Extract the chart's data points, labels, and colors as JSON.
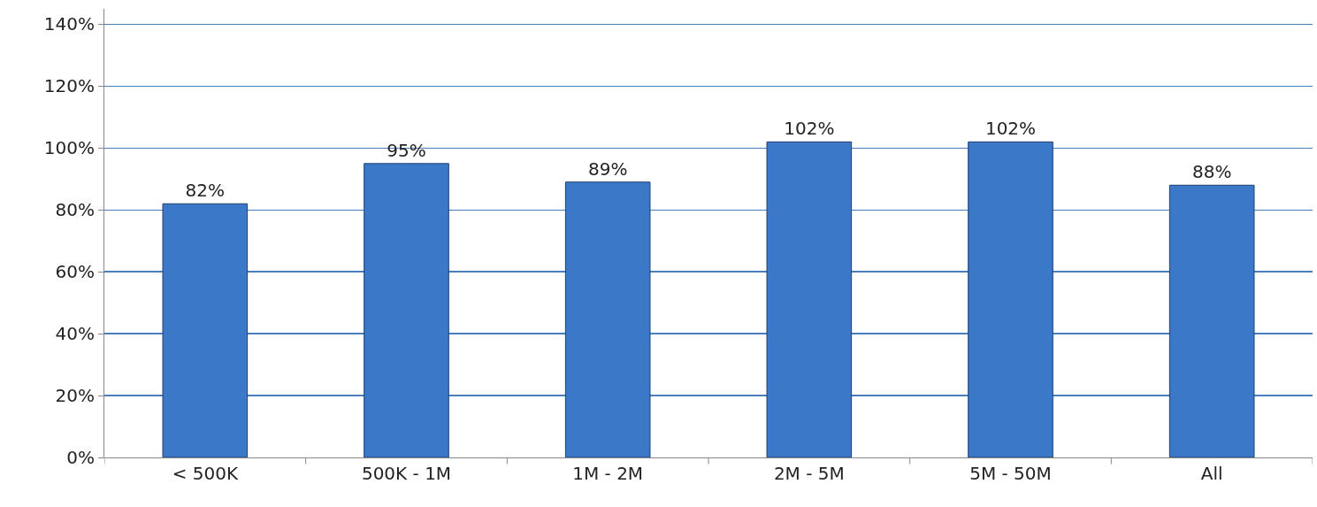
{
  "chart_data": {
    "type": "bar",
    "categories": [
      "< 500K",
      "500K - 1M",
      "1M - 2M",
      "2M - 5M",
      "5M - 50M",
      "All"
    ],
    "values": [
      82,
      95,
      89,
      102,
      102,
      88
    ],
    "value_labels": [
      "82%",
      "95%",
      "89%",
      "102%",
      "102%",
      "88%"
    ],
    "color": "#3b78c8",
    "ylim": [
      0,
      145
    ],
    "yticks": [
      {
        "value": 0,
        "label": "0%"
      },
      {
        "value": 20,
        "label": "20%"
      },
      {
        "value": 40,
        "label": "40%"
      },
      {
        "value": 60,
        "label": "60%"
      },
      {
        "value": 80,
        "label": "80%"
      },
      {
        "value": 100,
        "label": "100%"
      },
      {
        "value": 120,
        "label": "120%"
      },
      {
        "value": 140,
        "label": "140%"
      }
    ],
    "grid": "y"
  }
}
